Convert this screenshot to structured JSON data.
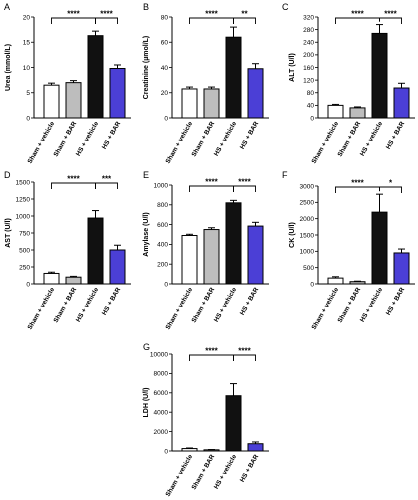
{
  "styles": {
    "bar_fill": [
      "#ffffff",
      "#bdbdbd",
      "#111111",
      "#4b3fd6"
    ],
    "stroke": "#000000"
  },
  "chart_data": [
    {
      "type": "bar",
      "panel": "A",
      "categories": [
        "Sham + vehicle",
        "Sham + BAR",
        "HS + vehicle",
        "HS + BAR"
      ],
      "values": [
        6.5,
        7.0,
        16.3,
        9.8
      ],
      "errors": [
        0.4,
        0.4,
        0.9,
        0.7
      ],
      "ylabel": "Urea (mmol/L)",
      "ylim": [
        0,
        20
      ],
      "yticks": [
        0,
        5,
        10,
        15,
        20
      ],
      "brackets": [
        {
          "from": 0,
          "to": 2,
          "label": "****"
        },
        {
          "from": 2,
          "to": 3,
          "label": "****"
        }
      ]
    },
    {
      "type": "bar",
      "panel": "B",
      "categories": [
        "Sham + vehicle",
        "Sham + BAR",
        "HS + vehicle",
        "HS + BAR"
      ],
      "values": [
        23,
        23,
        64,
        39
      ],
      "errors": [
        1.5,
        1.5,
        8,
        4
      ],
      "ylabel": "Creatinine (µmol/L)",
      "ylim": [
        0,
        80
      ],
      "yticks": [
        0,
        20,
        40,
        60,
        80
      ],
      "brackets": [
        {
          "from": 0,
          "to": 2,
          "label": "****"
        },
        {
          "from": 2,
          "to": 3,
          "label": "**"
        }
      ]
    },
    {
      "type": "bar",
      "panel": "C",
      "categories": [
        "Sham + vehicle",
        "Sham + BAR",
        "HS + vehicle",
        "HS + BAR"
      ],
      "values": [
        40,
        32,
        268,
        95
      ],
      "errors": [
        3,
        3,
        28,
        15
      ],
      "ylabel": "ALT (U/l)",
      "ylim": [
        0,
        320
      ],
      "yticks": [
        0,
        40,
        80,
        120,
        160,
        200,
        240,
        280,
        320
      ],
      "brackets": [
        {
          "from": 0,
          "to": 2,
          "label": "****"
        },
        {
          "from": 2,
          "to": 3,
          "label": "****"
        }
      ]
    },
    {
      "type": "bar",
      "panel": "D",
      "categories": [
        "Sham + vehicle",
        "Sham + BAR",
        "HS + vehicle",
        "HS + BAR"
      ],
      "values": [
        155,
        100,
        970,
        500
      ],
      "errors": [
        18,
        12,
        110,
        70
      ],
      "ylabel": "AST (U/l)",
      "ylim": [
        0,
        1500
      ],
      "yticks": [
        0,
        250,
        500,
        750,
        1000,
        1250,
        1500
      ],
      "brackets": [
        {
          "from": 0,
          "to": 2,
          "label": "****"
        },
        {
          "from": 2,
          "to": 3,
          "label": "***"
        }
      ]
    },
    {
      "type": "bar",
      "panel": "E",
      "categories": [
        "Sham + vehicle",
        "Sham + BAR",
        "HS + vehicle",
        "HS + BAR"
      ],
      "values": [
        490,
        550,
        820,
        585
      ],
      "errors": [
        12,
        18,
        25,
        38
      ],
      "ylabel": "Amylase (U/l)",
      "ylim": [
        0,
        1000
      ],
      "yticks": [
        0,
        200,
        400,
        600,
        800,
        1000
      ],
      "brackets": [
        {
          "from": 0,
          "to": 2,
          "label": "****"
        },
        {
          "from": 2,
          "to": 3,
          "label": "****"
        }
      ]
    },
    {
      "type": "bar",
      "panel": "F",
      "categories": [
        "Sham + vehicle",
        "Sham + BAR",
        "HS + vehicle",
        "HS + BAR"
      ],
      "values": [
        180,
        70,
        2200,
        950
      ],
      "errors": [
        40,
        15,
        550,
        120
      ],
      "ylabel": "CK (U/l)",
      "ylim": [
        0,
        3000
      ],
      "yticks": [
        0,
        500,
        1000,
        1500,
        2000,
        2500,
        3000
      ],
      "brackets": [
        {
          "from": 0,
          "to": 2,
          "label": "****"
        },
        {
          "from": 2,
          "to": 3,
          "label": "*"
        }
      ]
    },
    {
      "type": "bar",
      "panel": "G",
      "categories": [
        "Sham + vehicle",
        "Sham + BAR",
        "HS + vehicle",
        "HS + BAR"
      ],
      "values": [
        250,
        120,
        5700,
        750
      ],
      "errors": [
        60,
        30,
        1250,
        180
      ],
      "ylabel": "LDH (U/l)",
      "ylim": [
        0,
        10000
      ],
      "yticks": [
        0,
        2000,
        4000,
        6000,
        8000,
        10000
      ],
      "brackets": [
        {
          "from": 0,
          "to": 2,
          "label": "****"
        },
        {
          "from": 2,
          "to": 3,
          "label": "****"
        }
      ]
    }
  ]
}
